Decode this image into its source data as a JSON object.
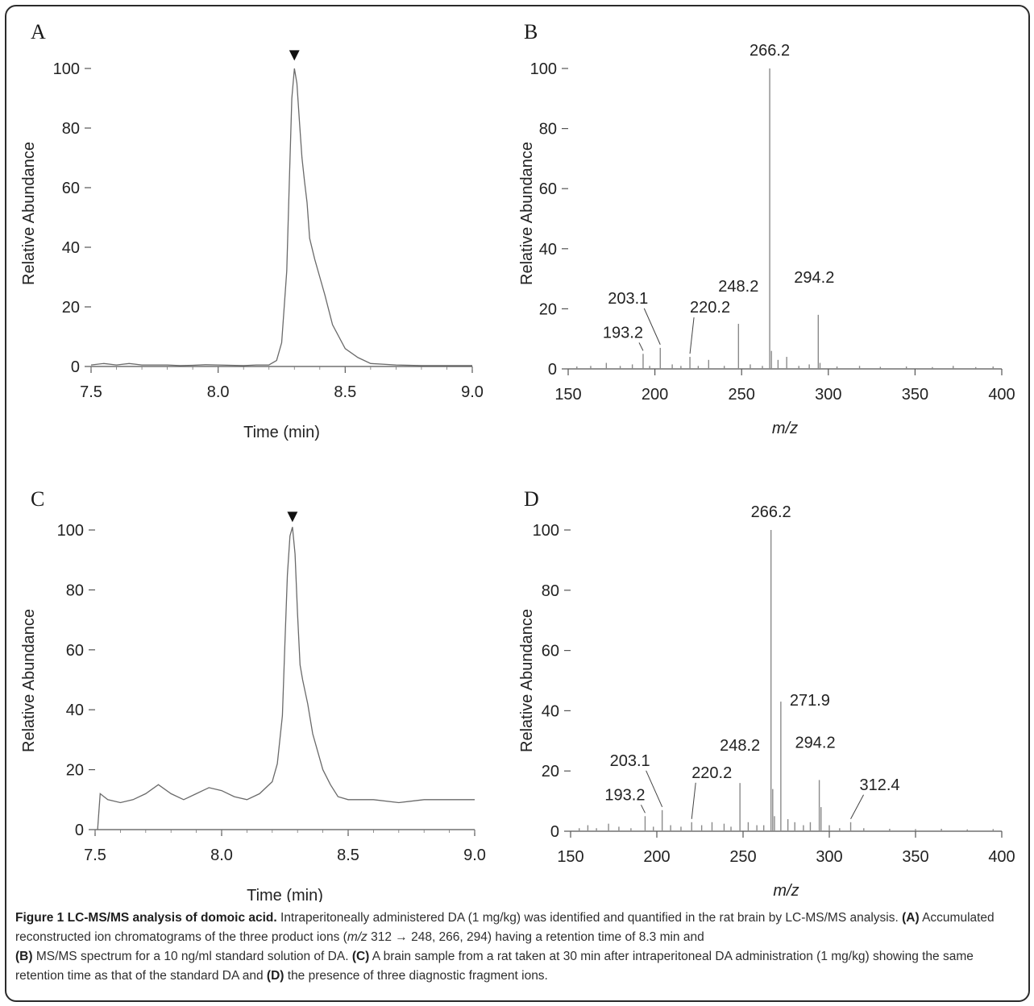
{
  "panels": [
    {
      "letter": "A",
      "chart_data": {
        "type": "line",
        "xlabel": "Time (min)",
        "ylabel": "Relative Abundance",
        "xlim": [
          7.5,
          9.0
        ],
        "ylim": [
          0,
          100
        ],
        "xticks": [
          "7.5",
          "8.0",
          "8.5",
          "9.0"
        ],
        "yticks": [
          "0",
          "20",
          "40",
          "60",
          "80",
          "100"
        ],
        "marker": {
          "x": 8.3,
          "symbol": "▼"
        },
        "series": [
          {
            "x": [
              7.5,
              7.55,
              7.6,
              7.65,
              7.7,
              7.75,
              7.8,
              7.85,
              7.9,
              7.95,
              8.0,
              8.05,
              8.1,
              8.15,
              8.2,
              8.23,
              8.25,
              8.27,
              8.28,
              8.29,
              8.3,
              8.31,
              8.32,
              8.33,
              8.34,
              8.35,
              8.36,
              8.38,
              8.4,
              8.42,
              8.45,
              8.5,
              8.55,
              8.6,
              8.7,
              8.8,
              8.9,
              9.0
            ],
            "y": [
              0.5,
              1,
              0.5,
              1,
              0.5,
              0.5,
              0.5,
              0.3,
              0.4,
              0.6,
              0.5,
              0.4,
              0.3,
              0.5,
              0.5,
              2,
              8,
              32,
              62,
              90,
              100,
              95,
              82,
              70,
              62,
              55,
              43,
              36,
              30,
              24,
              14,
              6,
              3,
              1,
              0.5,
              0.3,
              0.3,
              0.3
            ]
          }
        ]
      }
    },
    {
      "letter": "B",
      "chart_data": {
        "type": "bar",
        "xlabel": "m/z",
        "ylabel": "Relative Abundance",
        "xlim": [
          150,
          400
        ],
        "ylim": [
          0,
          100
        ],
        "xticks": [
          "150",
          "200",
          "250",
          "300",
          "350",
          "400"
        ],
        "yticks": [
          "0",
          "20",
          "40",
          "60",
          "80",
          "100"
        ],
        "peaks": [
          {
            "mz": 155,
            "y": 0.8
          },
          {
            "mz": 163,
            "y": 1
          },
          {
            "mz": 172,
            "y": 2
          },
          {
            "mz": 180,
            "y": 1
          },
          {
            "mz": 187,
            "y": 1.5
          },
          {
            "mz": 193.2,
            "y": 5
          },
          {
            "mz": 197,
            "y": 1
          },
          {
            "mz": 203.1,
            "y": 7
          },
          {
            "mz": 210,
            "y": 1.5
          },
          {
            "mz": 215,
            "y": 1
          },
          {
            "mz": 220.2,
            "y": 4
          },
          {
            "mz": 225,
            "y": 1
          },
          {
            "mz": 231,
            "y": 3
          },
          {
            "mz": 240,
            "y": 1
          },
          {
            "mz": 248.2,
            "y": 15
          },
          {
            "mz": 255,
            "y": 1.5
          },
          {
            "mz": 262,
            "y": 1
          },
          {
            "mz": 266.2,
            "y": 100
          },
          {
            "mz": 267.2,
            "y": 6
          },
          {
            "mz": 271,
            "y": 3
          },
          {
            "mz": 276,
            "y": 4
          },
          {
            "mz": 283,
            "y": 1
          },
          {
            "mz": 289,
            "y": 1.5
          },
          {
            "mz": 294.2,
            "y": 18
          },
          {
            "mz": 295.2,
            "y": 2
          },
          {
            "mz": 305,
            "y": 0.8
          },
          {
            "mz": 318,
            "y": 1
          },
          {
            "mz": 330,
            "y": 0.7
          },
          {
            "mz": 345,
            "y": 0.8
          },
          {
            "mz": 360,
            "y": 0.6
          },
          {
            "mz": 372,
            "y": 1
          },
          {
            "mz": 385,
            "y": 0.6
          },
          {
            "mz": 395,
            "y": 0.8
          }
        ],
        "labels": [
          "193.2",
          "203.1",
          "220.2",
          "248.2",
          "266.2",
          "294.2"
        ]
      }
    },
    {
      "letter": "C",
      "chart_data": {
        "type": "line",
        "xlabel": "Time (min)",
        "ylabel": "Relative Abundance",
        "xlim": [
          7.5,
          9.0
        ],
        "ylim": [
          0,
          100
        ],
        "xticks": [
          "7.5",
          "8.0",
          "8.5",
          "9.0"
        ],
        "yticks": [
          "0",
          "20",
          "40",
          "60",
          "80",
          "100"
        ],
        "marker": {
          "x": 8.28,
          "symbol": "▼"
        },
        "series": [
          {
            "x": [
              7.51,
              7.52,
              7.55,
              7.6,
              7.65,
              7.7,
              7.75,
              7.8,
              7.85,
              7.9,
              7.95,
              8.0,
              8.05,
              8.1,
              8.15,
              8.2,
              8.22,
              8.24,
              8.25,
              8.26,
              8.27,
              8.28,
              8.29,
              8.3,
              8.31,
              8.32,
              8.34,
              8.36,
              8.38,
              8.4,
              8.43,
              8.46,
              8.5,
              8.6,
              8.7,
              8.8,
              8.9,
              9.0
            ],
            "y": [
              0,
              12,
              10,
              9,
              10,
              12,
              15,
              12,
              10,
              12,
              14,
              13,
              11,
              10,
              12,
              16,
              22,
              38,
              62,
              85,
              98,
              101,
              92,
              72,
              55,
              50,
              42,
              32,
              26,
              20,
              15,
              11,
              10,
              10,
              9,
              10,
              10,
              10
            ]
          }
        ]
      }
    },
    {
      "letter": "D",
      "chart_data": {
        "type": "bar",
        "xlabel": "m/z",
        "ylabel": "Relative Abundance",
        "xlim": [
          150,
          400
        ],
        "ylim": [
          0,
          100
        ],
        "xticks": [
          "150",
          "200",
          "250",
          "300",
          "350",
          "400"
        ],
        "yticks": [
          "0",
          "20",
          "40",
          "60",
          "80",
          "100"
        ],
        "peaks": [
          {
            "mz": 155,
            "y": 1
          },
          {
            "mz": 160,
            "y": 2
          },
          {
            "mz": 165,
            "y": 1
          },
          {
            "mz": 172,
            "y": 2.5
          },
          {
            "mz": 178,
            "y": 1.5
          },
          {
            "mz": 185,
            "y": 1
          },
          {
            "mz": 193.2,
            "y": 5
          },
          {
            "mz": 198,
            "y": 1.5
          },
          {
            "mz": 203.1,
            "y": 7
          },
          {
            "mz": 208,
            "y": 2
          },
          {
            "mz": 214,
            "y": 1.5
          },
          {
            "mz": 220.2,
            "y": 3
          },
          {
            "mz": 226,
            "y": 2
          },
          {
            "mz": 232,
            "y": 3
          },
          {
            "mz": 239,
            "y": 2.5
          },
          {
            "mz": 243,
            "y": 1.5
          },
          {
            "mz": 248.2,
            "y": 16
          },
          {
            "mz": 253,
            "y": 3
          },
          {
            "mz": 258,
            "y": 2
          },
          {
            "mz": 262,
            "y": 2
          },
          {
            "mz": 266.2,
            "y": 100
          },
          {
            "mz": 267.2,
            "y": 14
          },
          {
            "mz": 268.2,
            "y": 5
          },
          {
            "mz": 271.9,
            "y": 43
          },
          {
            "mz": 276,
            "y": 4
          },
          {
            "mz": 280,
            "y": 3
          },
          {
            "mz": 285,
            "y": 2
          },
          {
            "mz": 289,
            "y": 3
          },
          {
            "mz": 294.2,
            "y": 17
          },
          {
            "mz": 295.2,
            "y": 8
          },
          {
            "mz": 300,
            "y": 2
          },
          {
            "mz": 306,
            "y": 1
          },
          {
            "mz": 312.4,
            "y": 3
          },
          {
            "mz": 320,
            "y": 1
          },
          {
            "mz": 335,
            "y": 0.8
          },
          {
            "mz": 350,
            "y": 0.7
          },
          {
            "mz": 365,
            "y": 0.8
          },
          {
            "mz": 380,
            "y": 0.6
          },
          {
            "mz": 395,
            "y": 0.7
          }
        ],
        "labels": [
          "193.2",
          "203.1",
          "220.2",
          "248.2",
          "266.2",
          "271.9",
          "294.2",
          "312.4"
        ]
      }
    }
  ],
  "caption": {
    "title": "Figure 1 LC-MS/MS analysis of domoic acid.",
    "s1": " Intraperitoneally administered DA (1 mg/kg) was identified and quantified in the rat brain by LC-MS/MS analysis. ",
    "tagA": "(A)",
    "s2": " Accumulated reconstructed ion chromatograms of the three product ions (",
    "mz": "m/z",
    "s3": " 312 → 248, 266, 294) having a retention time of 8.3 min and ",
    "tagB": "(B)",
    "s4": " MS/MS spectrum for a 10 ng/ml standard solution of DA. ",
    "tagC": "(C)",
    "s5": " A brain sample from a rat taken at 30 min after intraperitoneal DA administration (1 mg/kg) showing the same retention time as that of the standard DA and ",
    "tagD": "(D)",
    "s6": " the presence of three diagnostic fragment ions."
  }
}
